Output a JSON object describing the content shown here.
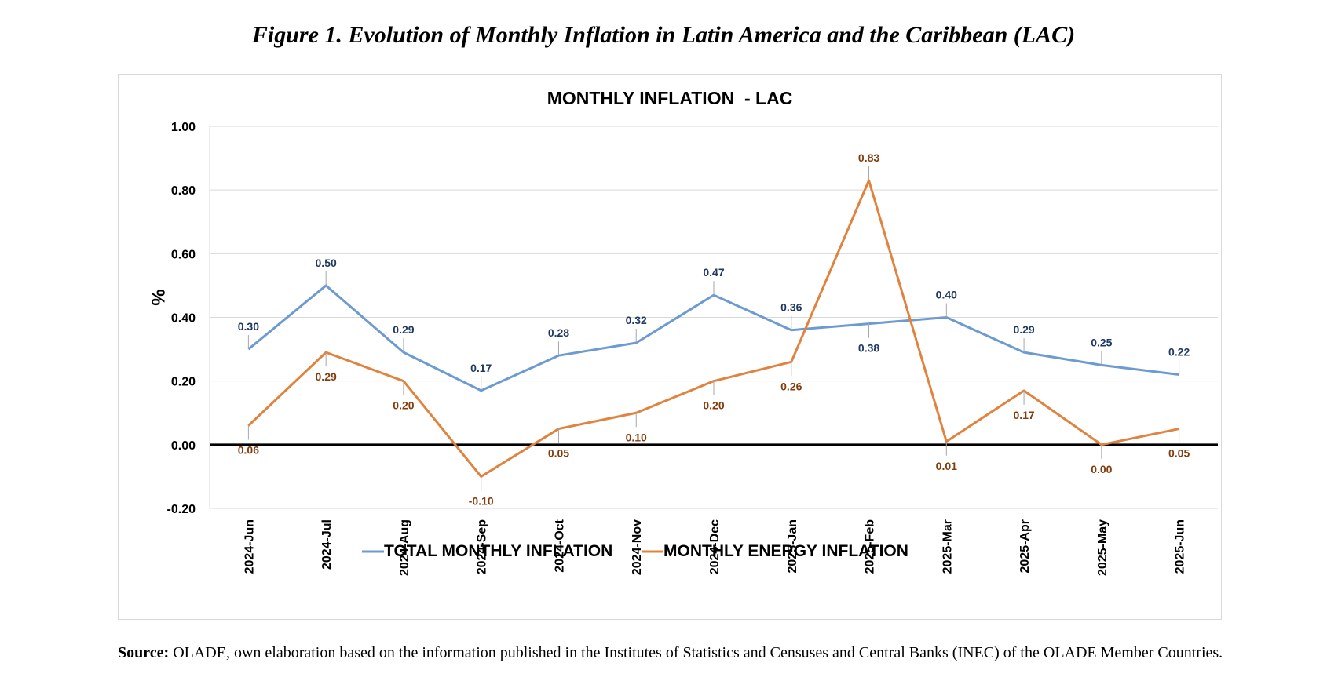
{
  "figure": {
    "title": "Figure 1. Evolution of Monthly Inflation in Latin America and the Caribbean (LAC)",
    "source_label": "Source:",
    "source_text": " OLADE, own elaboration based on the information published in the Institutes of Statistics and Censuses and Central Banks (INEC) of the OLADE Member Countries."
  },
  "chart_data": {
    "type": "line",
    "title": "MONTHLY INFLATION  - LAC",
    "ylabel": "%",
    "xlabel": "",
    "ylim": [
      -0.2,
      1.0
    ],
    "yticks": [
      -0.2,
      0.0,
      0.2,
      0.4,
      0.6,
      0.8,
      1.0
    ],
    "ytick_labels": [
      "-0.20",
      "0.00",
      "0.20",
      "0.40",
      "0.60",
      "0.80",
      "1.00"
    ],
    "grid": true,
    "legend_position": "bottom",
    "categories": [
      "2024-Jun",
      "2024-Jul",
      "2024-Aug",
      "2024-Sep",
      "2024-Oct",
      "2024-Nov",
      "2024-Dec",
      "2025-Jan",
      "2025-Feb",
      "2025-Mar",
      "2025-Apr",
      "2025-May",
      "2025-Jun"
    ],
    "series": [
      {
        "name": "TOTAL MONTHLY INFLATION",
        "color": "#6d9bd1",
        "label_color": "#1f3864",
        "values": [
          0.3,
          0.5,
          0.29,
          0.17,
          0.28,
          0.32,
          0.47,
          0.36,
          0.38,
          0.4,
          0.29,
          0.25,
          0.22
        ],
        "labels": [
          "0.30",
          "0.50",
          "0.29",
          "0.17",
          "0.28",
          "0.32",
          "0.47",
          "0.36",
          "0.38",
          "0.40",
          "0.29",
          "0.25",
          "0.22"
        ]
      },
      {
        "name": "MONTHLY ENERGY INFLATION",
        "color": "#e0833e",
        "label_color": "#843c0c",
        "values": [
          0.06,
          0.29,
          0.2,
          -0.1,
          0.05,
          0.1,
          0.2,
          0.26,
          0.83,
          0.01,
          0.17,
          0.0,
          0.05
        ],
        "labels": [
          "0.06",
          "0.29",
          "0.20",
          "-0.10",
          "0.05",
          "0.10",
          "0.20",
          "0.26",
          "0.83",
          "0.01",
          "0.17",
          "0.00",
          "0.05"
        ]
      }
    ]
  }
}
